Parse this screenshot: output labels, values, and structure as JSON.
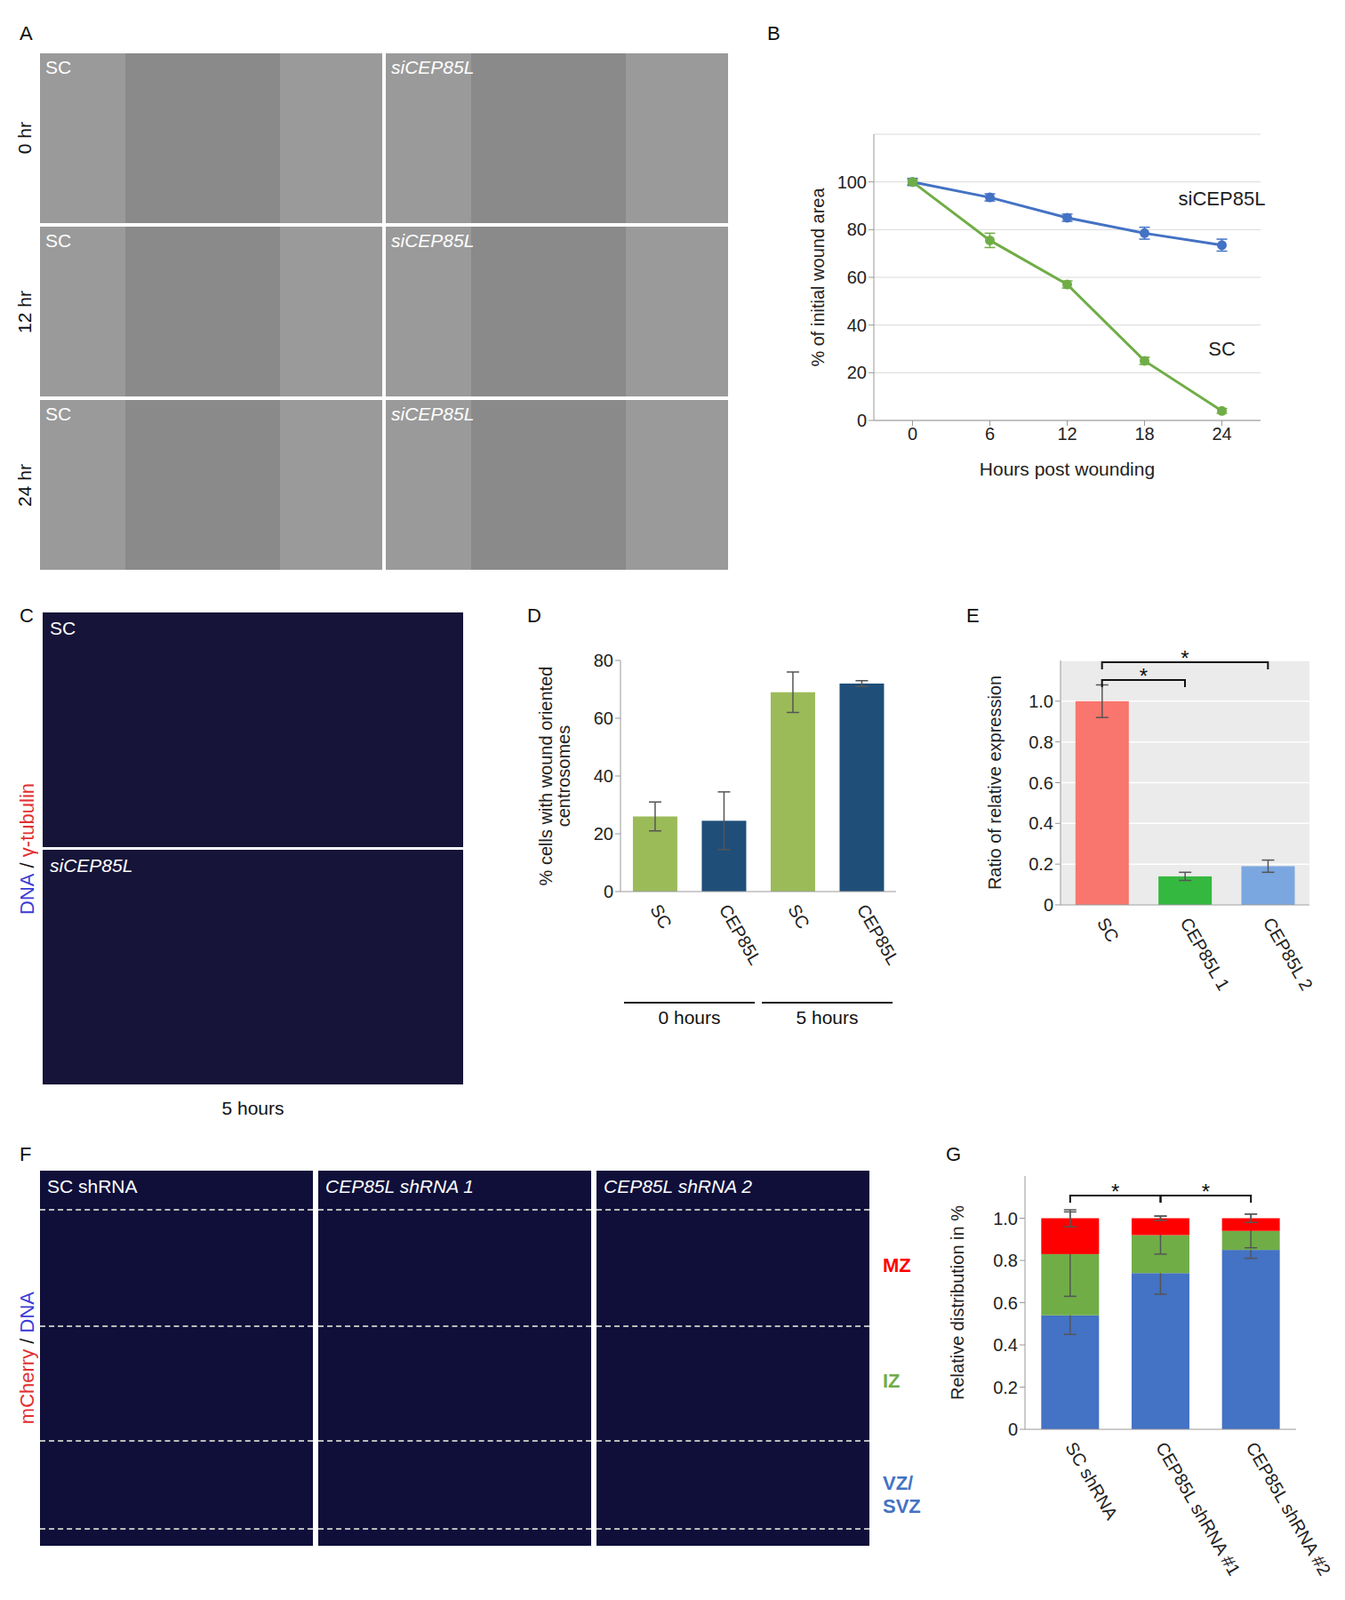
{
  "images": [
    {
      "panel": "A",
      "columns": [
        "SC",
        "siCEP85L"
      ],
      "rows": [
        "0 hr",
        "12 hr",
        "24 hr"
      ]
    },
    {
      "panel": "C",
      "images": [
        "SC",
        "siCEP85L"
      ],
      "channels": [
        {
          "label": "DNA",
          "color": "#3b3bd6"
        },
        {
          "label": "γ-tubulin",
          "color": "#e03030"
        }
      ],
      "separator": "/",
      "caption": "5 hours"
    },
    {
      "panel": "F",
      "images": [
        "SC shRNA",
        "CEP85L shRNA 1",
        "CEP85L shRNA 2"
      ],
      "channels": [
        {
          "label": "mCherry",
          "color": "#e03030"
        },
        {
          "label": "DNA",
          "color": "#3b3bd6"
        }
      ],
      "separator": "/"
    }
  ],
  "chart_data": [
    {
      "panel": "B",
      "type": "line",
      "x": [
        0,
        6,
        12,
        18,
        24
      ],
      "xlim": [
        -3,
        27
      ],
      "xticks": [
        0,
        6,
        12,
        18,
        24
      ],
      "ylim": [
        0,
        120
      ],
      "yticks": [
        0,
        20,
        40,
        60,
        80,
        100
      ],
      "x_label": "Hours post wounding",
      "y_label": "% of initial wound area",
      "grid": true,
      "marker": "circle",
      "series": [
        {
          "name": "siCEP85L",
          "color": "#4472c4",
          "values": [
            100,
            93.5,
            85,
            78.5,
            73.5
          ],
          "errors": [
            1.5,
            1.5,
            1.5,
            2.5,
            2.5
          ]
        },
        {
          "name": "SC",
          "color": "#70ad47",
          "values": [
            100,
            75.5,
            57,
            25,
            4
          ],
          "errors": [
            1,
            3,
            1.5,
            1.5,
            1
          ]
        }
      ]
    },
    {
      "panel": "D",
      "type": "bar",
      "categories": [
        "SC",
        "CEP85L",
        "SC",
        "CEP85L"
      ],
      "values": [
        26,
        24.5,
        69,
        72
      ],
      "errors": [
        5,
        10,
        7,
        1
      ],
      "colors": [
        "#9bbb59",
        "#1f4e79",
        "#9bbb59",
        "#1f4e79"
      ],
      "ylim": [
        0,
        80
      ],
      "yticks": [
        0,
        20,
        40,
        60,
        80
      ],
      "y_label": "% cells with wound oriented centrosomes",
      "groups": [
        {
          "label": "0 hours",
          "categories": [
            0,
            1
          ]
        },
        {
          "label": "5 hours",
          "categories": [
            2,
            3
          ]
        }
      ]
    },
    {
      "panel": "E",
      "type": "bar",
      "categories": [
        "SC",
        "CEP85L 1",
        "CEP85L 2"
      ],
      "values": [
        1,
        0.14,
        0.19
      ],
      "errors": [
        0.08,
        0.02,
        0.03
      ],
      "colors": [
        "#f8766d",
        "#35b83f",
        "#7ba7e0"
      ],
      "ylim": [
        0,
        1.2
      ],
      "yticks": [
        0,
        0.2,
        0.4,
        0.6,
        0.8,
        {
          "value": 1,
          "label": "1.0"
        }
      ],
      "grid": true,
      "y_label": "Ratio of relative expression",
      "significance": [
        {
          "pair": [
            0,
            1
          ],
          "label": "*"
        },
        {
          "pair": [
            0,
            2
          ],
          "label": "*"
        }
      ]
    },
    {
      "panel": "G",
      "type": "bar",
      "stacked": true,
      "categories": [
        "SC shRNA",
        "CEP85L shRNA #1",
        "CEP85L shRNA #2"
      ],
      "ylim": [
        0,
        1.2
      ],
      "yticks": [
        0,
        0.2,
        0.4,
        0.6,
        0.8,
        {
          "value": 1,
          "label": "1.0"
        }
      ],
      "y_label": "Relative distribution in %",
      "series": [
        {
          "name": "VZ/SVZ",
          "color": "#4472c4",
          "values": [
            0.54,
            0.74,
            0.85
          ],
          "errors": [
            0.09,
            0.1,
            0.04
          ]
        },
        {
          "name": "IZ",
          "color": "#70ad47",
          "values": [
            0.29,
            0.18,
            0.09
          ],
          "errors": [
            0.2,
            0.09,
            0.08
          ]
        },
        {
          "name": "MZ",
          "color": "#ff0000",
          "values": [
            0.17,
            0.08,
            0.06
          ],
          "errors": [
            0.04,
            0.01,
            0.02
          ]
        }
      ],
      "significance": [
        {
          "pair": [
            0,
            1
          ],
          "label": "*"
        },
        {
          "pair": [
            1,
            2
          ],
          "label": "*"
        }
      ]
    }
  ]
}
